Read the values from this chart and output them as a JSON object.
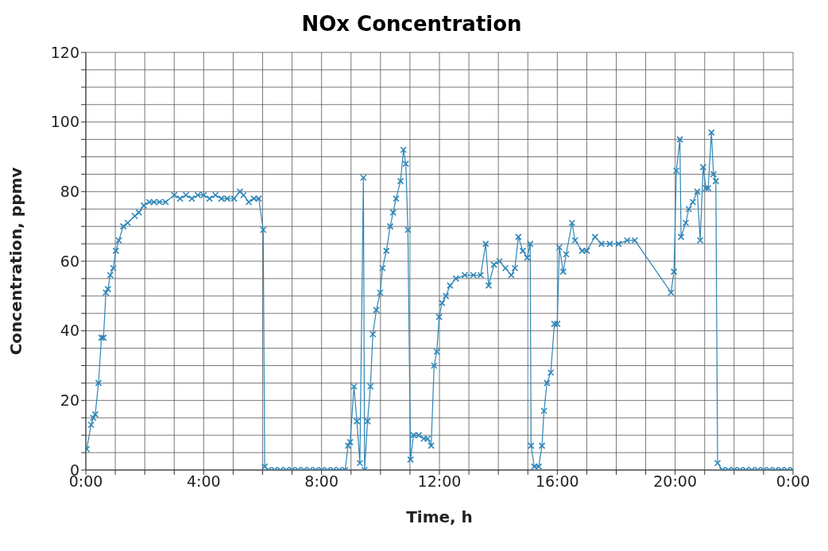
{
  "chart_data": {
    "type": "line",
    "title": "NOx Concentration",
    "xlabel": "Time, h",
    "ylabel": "Concentration, ppmv",
    "xlim": [
      0,
      24
    ],
    "xticks": [
      {
        "value": 0,
        "label": "0:00"
      },
      {
        "value": 1,
        "label": null
      },
      {
        "value": 2,
        "label": null
      },
      {
        "value": 3,
        "label": null
      },
      {
        "value": 4,
        "label": "4:00"
      },
      {
        "value": 5,
        "label": null
      },
      {
        "value": 6,
        "label": null
      },
      {
        "value": 7,
        "label": null
      },
      {
        "value": 8,
        "label": "8:00"
      },
      {
        "value": 9,
        "label": null
      },
      {
        "value": 10,
        "label": null
      },
      {
        "value": 11,
        "label": null
      },
      {
        "value": 12,
        "label": "12:00"
      },
      {
        "value": 13,
        "label": null
      },
      {
        "value": 14,
        "label": null
      },
      {
        "value": 15,
        "label": null
      },
      {
        "value": 16,
        "label": "16:00"
      },
      {
        "value": 17,
        "label": null
      },
      {
        "value": 18,
        "label": null
      },
      {
        "value": 19,
        "label": null
      },
      {
        "value": 20,
        "label": "20:00"
      },
      {
        "value": 21,
        "label": null
      },
      {
        "value": 22,
        "label": null
      },
      {
        "value": 23,
        "label": null
      },
      {
        "value": 24,
        "label": "0:00"
      }
    ],
    "ylim": [
      0,
      120
    ],
    "yticks": [
      0,
      {
        "value": 5,
        "label": null
      },
      {
        "value": 10,
        "label": null
      },
      {
        "value": 15,
        "label": null
      },
      20,
      {
        "value": 25,
        "label": null
      },
      {
        "value": 30,
        "label": null
      },
      {
        "value": 35,
        "label": null
      },
      40,
      {
        "value": 45,
        "label": null
      },
      {
        "value": 50,
        "label": null
      },
      {
        "value": 55,
        "label": null
      },
      60,
      {
        "value": 65,
        "label": null
      },
      {
        "value": 70,
        "label": null
      },
      {
        "value": 75,
        "label": null
      },
      80,
      {
        "value": 85,
        "label": null
      },
      {
        "value": 90,
        "label": null
      },
      {
        "value": 95,
        "label": null
      },
      100,
      {
        "value": 105,
        "label": null
      },
      {
        "value": 110,
        "label": null
      },
      {
        "value": 115,
        "label": null
      },
      120
    ],
    "grid": true,
    "marker": "cross",
    "line_style": "solid",
    "series": [
      {
        "color": "#2e86b8",
        "x": [
          0.03,
          0.18,
          0.25,
          0.32,
          0.43,
          0.53,
          0.6,
          0.68,
          0.75,
          0.83,
          0.93,
          1.02,
          1.12,
          1.27,
          1.42,
          1.66,
          1.8,
          1.97,
          2.15,
          2.31,
          2.5,
          2.71,
          3.0,
          3.2,
          3.4,
          3.6,
          3.8,
          4.0,
          4.2,
          4.4,
          4.6,
          4.8,
          5.03,
          5.23,
          5.35,
          5.53,
          5.7,
          5.87,
          6.02,
          6.07,
          6.2,
          6.4,
          6.6,
          6.8,
          7.0,
          7.2,
          7.4,
          7.6,
          7.8,
          8.0,
          8.2,
          8.4,
          8.6,
          8.8,
          8.9,
          8.97,
          9.1,
          9.2,
          9.3,
          9.42,
          9.46,
          9.56,
          9.66,
          9.74,
          9.86,
          9.99,
          10.07,
          10.2,
          10.33,
          10.43,
          10.53,
          10.68,
          10.78,
          10.86,
          10.93,
          11.02,
          11.12,
          11.3,
          11.47,
          11.6,
          11.72,
          11.82,
          11.91,
          11.99,
          12.09,
          12.22,
          12.36,
          12.56,
          12.86,
          13.15,
          13.4,
          13.57,
          13.67,
          13.85,
          14.04,
          14.24,
          14.44,
          14.56,
          14.68,
          14.83,
          14.98,
          15.08,
          15.11,
          15.22,
          15.37,
          15.48,
          15.55,
          15.65,
          15.78,
          15.9,
          16.0,
          16.07,
          16.2,
          16.3,
          16.5,
          16.6,
          16.84,
          17.0,
          17.28,
          17.5,
          17.78,
          18.08,
          18.37,
          18.63,
          19.86,
          19.96,
          20.04,
          20.16,
          20.2,
          20.36,
          20.46,
          20.6,
          20.75,
          20.85,
          20.95,
          21.04,
          21.12,
          21.23,
          21.3,
          21.38,
          21.44,
          21.6,
          21.8,
          22.0,
          22.2,
          22.4,
          22.6,
          22.8,
          23.0,
          23.2,
          23.4,
          23.6,
          23.8,
          24.0
        ],
        "values": [
          6,
          13,
          15,
          16,
          25,
          38,
          38,
          51,
          52,
          56,
          58,
          63,
          66,
          70,
          71,
          73,
          74,
          76,
          77,
          77,
          77,
          77,
          79,
          78,
          79,
          78,
          79,
          79,
          78,
          79,
          78,
          78,
          78,
          80,
          79,
          77,
          78,
          78,
          69,
          1,
          0,
          0,
          0,
          0,
          0,
          0,
          0,
          0,
          0,
          0,
          0,
          0,
          0,
          0,
          7,
          8,
          24,
          14,
          2,
          84,
          0,
          14,
          24,
          39,
          46,
          51,
          58,
          63,
          70,
          74,
          78,
          83,
          92,
          88,
          69,
          3,
          10,
          10,
          9,
          9,
          7,
          30,
          34,
          44,
          48,
          50,
          53,
          55,
          56,
          56,
          56,
          65,
          53,
          59,
          60,
          58,
          56,
          58,
          67,
          63,
          61,
          65,
          7,
          1,
          1,
          7,
          17,
          25,
          28,
          42,
          42,
          64,
          57,
          62,
          71,
          66,
          63,
          63,
          67,
          65,
          65,
          65,
          66,
          66,
          51,
          57,
          86,
          95,
          67,
          71,
          75,
          77,
          80,
          66,
          87,
          81,
          81,
          97,
          85,
          83,
          2,
          0,
          0,
          0,
          0,
          0,
          0,
          0,
          0,
          0,
          0,
          0,
          0,
          0
        ]
      }
    ]
  }
}
